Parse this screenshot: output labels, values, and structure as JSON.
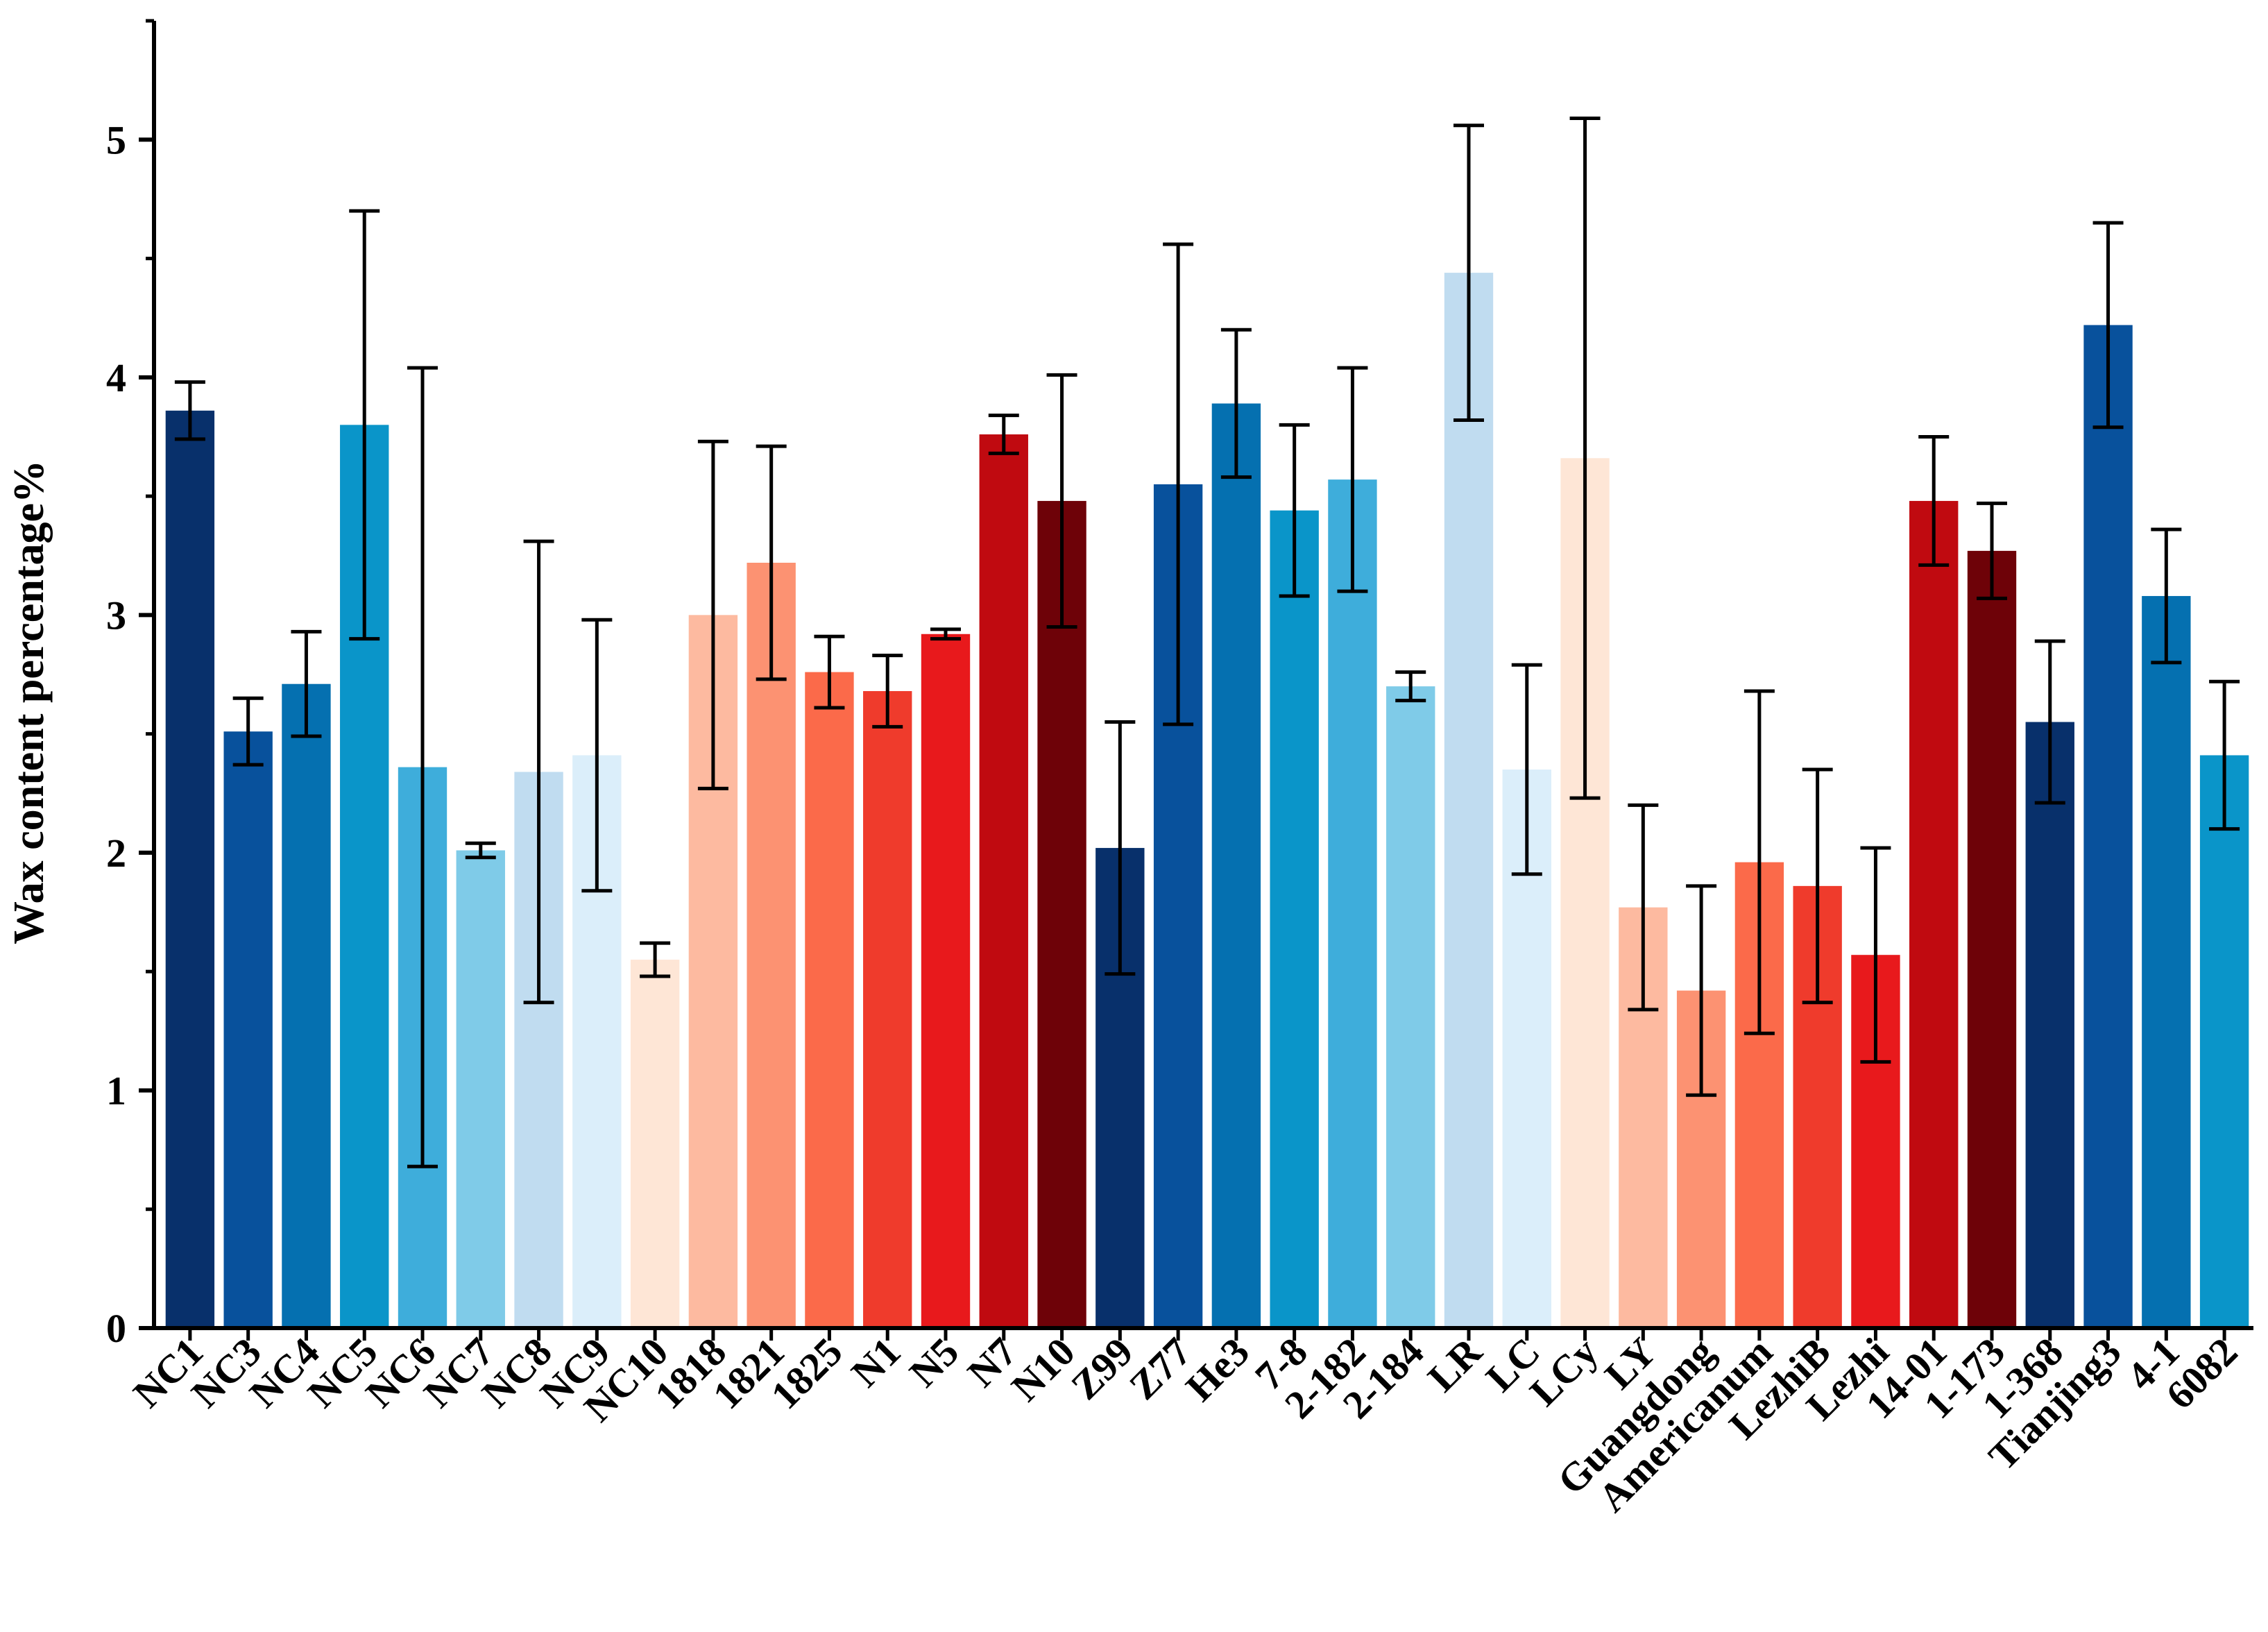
{
  "chart_data": {
    "type": "bar",
    "title": "",
    "xlabel": "",
    "ylabel": "Wax content percentage%",
    "ylim": [
      0,
      5.5
    ],
    "yticks": [
      0,
      1,
      2,
      3,
      4,
      5
    ],
    "ytick_labels": [
      "0",
      "1",
      "2",
      "3",
      "4",
      "5"
    ],
    "grid": false,
    "legend": "none",
    "categories": [
      "NC1",
      "NC3",
      "NC4",
      "NC5",
      "NC6",
      "NC7",
      "NC8",
      "NC9",
      "NC10",
      "1818",
      "1821",
      "1825",
      "N1",
      "N5",
      "N7",
      "N10",
      "Z99",
      "Z77",
      "He3",
      "7-8",
      "2-182",
      "2-184",
      "LR",
      "LC",
      "LCy",
      "LY",
      "Guangdong",
      "Americanum",
      "LezhiB",
      "Lezhi",
      "14-01",
      "1-173",
      "1-368",
      "Tianjing3",
      "4-1",
      "6082"
    ],
    "values": [
      3.86,
      2.51,
      2.71,
      3.8,
      2.36,
      2.01,
      2.34,
      2.41,
      1.55,
      3.0,
      3.22,
      2.76,
      2.68,
      2.92,
      3.76,
      3.48,
      2.02,
      3.55,
      3.89,
      3.44,
      3.57,
      2.7,
      4.44,
      2.35,
      3.66,
      1.77,
      1.42,
      1.96,
      1.86,
      1.57,
      3.48,
      3.27,
      2.55,
      4.22,
      3.08,
      2.41
    ],
    "errors": [
      0.12,
      0.14,
      0.22,
      0.9,
      1.68,
      0.03,
      0.97,
      0.57,
      0.07,
      0.73,
      0.49,
      0.15,
      0.15,
      0.02,
      0.08,
      0.53,
      0.53,
      1.01,
      0.31,
      0.36,
      0.47,
      0.06,
      0.62,
      0.44,
      1.43,
      0.43,
      0.44,
      0.72,
      0.49,
      0.45,
      0.27,
      0.2,
      0.34,
      0.43,
      0.28,
      0.31
    ],
    "colors": [
      "#08306b",
      "#08519c",
      "#0570b0",
      "#0a95c9",
      "#3eaddb",
      "#7fcbe8",
      "#c0dcf0",
      "#dbeefa",
      "#fee6d6",
      "#fdbaa0",
      "#fc9272",
      "#fb6a4a",
      "#ef3b2c",
      "#e8191c",
      "#c00a10",
      "#6e0208",
      "#08306b",
      "#08519c",
      "#0570b0",
      "#0a95c9",
      "#3eaddb",
      "#7fcbe8",
      "#c0dcf0",
      "#dbeefa",
      "#fee6d6",
      "#fdbaa0",
      "#fc9272",
      "#fb6a4a",
      "#ef3b2c",
      "#e8191c",
      "#c00a10",
      "#6e0208",
      "#08306b",
      "#08519c",
      "#0570b0",
      "#0a95c9"
    ]
  }
}
